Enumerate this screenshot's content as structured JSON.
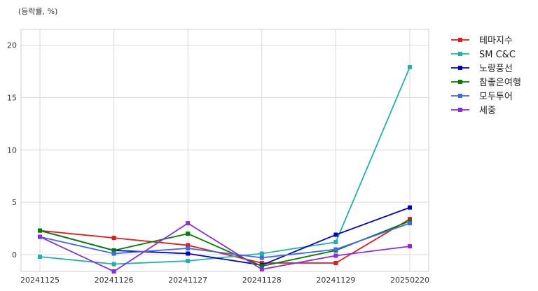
{
  "chart_data": {
    "type": "line",
    "title": "",
    "unit_label": "(등락률, %)",
    "xlabel": "",
    "ylabel": "",
    "categories": [
      "20241125",
      "20241126",
      "20241127",
      "20241128",
      "20241129",
      "20250220"
    ],
    "ylim": [
      -1.6,
      21.5
    ],
    "yticks": [
      0,
      5,
      10,
      15,
      20
    ],
    "grid": true,
    "legend_position": "outside-top-right",
    "series": [
      {
        "name": "테마지수",
        "color": "#e41a1c",
        "values": [
          2.3,
          1.6,
          0.9,
          -0.8,
          -0.8,
          3.4
        ]
      },
      {
        "name": "SM C&C",
        "color": "#20b2aa",
        "values": [
          -0.2,
          -0.9,
          -0.6,
          0.1,
          1.2,
          17.9
        ]
      },
      {
        "name": "노랑풍선",
        "color": "#0000cd",
        "values": [
          2.3,
          0.4,
          0.1,
          -1.0,
          1.9,
          4.5
        ]
      },
      {
        "name": "참좋은여행",
        "color": "#008000",
        "values": [
          2.3,
          0.4,
          2.0,
          -1.1,
          0.4,
          3.2
        ]
      },
      {
        "name": "모두투어",
        "color": "#4169e1",
        "values": [
          1.7,
          0.1,
          0.6,
          -0.3,
          0.5,
          3.0
        ]
      },
      {
        "name": "세중",
        "color": "#8a2be2",
        "values": [
          1.7,
          -1.6,
          3.0,
          -1.4,
          -0.1,
          0.8
        ]
      }
    ]
  }
}
